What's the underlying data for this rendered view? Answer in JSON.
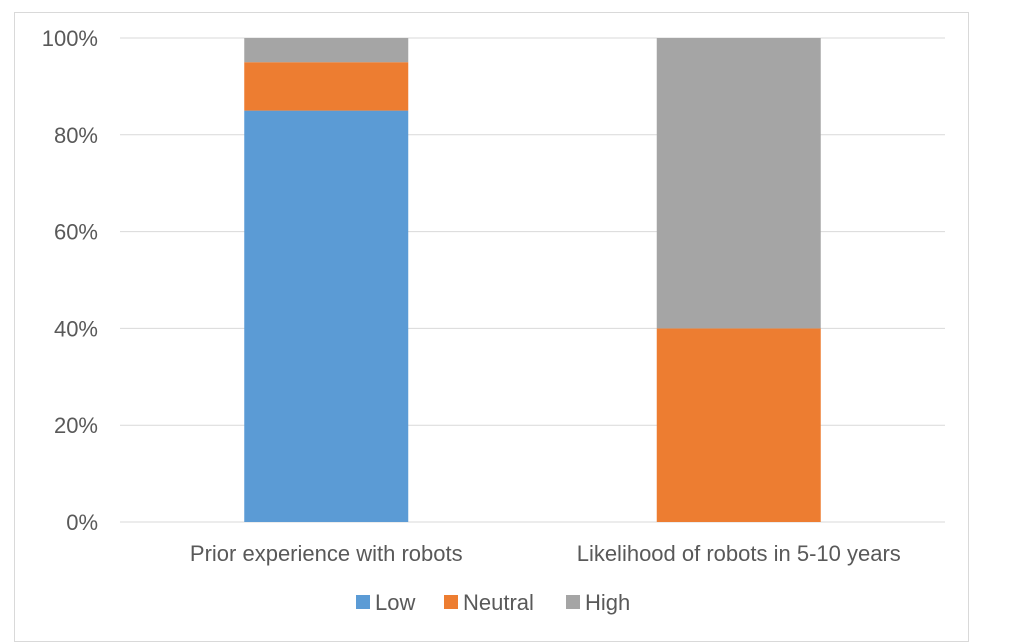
{
  "chart_data": {
    "type": "bar",
    "stacked": true,
    "categories": [
      "Prior experience with robots",
      "Likelihood of robots in 5-10 years"
    ],
    "series": [
      {
        "name": "Low",
        "color": "#5b9bd5",
        "values": [
          85,
          0
        ]
      },
      {
        "name": "Neutral",
        "color": "#ed7d31",
        "values": [
          10,
          40
        ]
      },
      {
        "name": "High",
        "color": "#a5a5a5",
        "values": [
          5,
          60
        ]
      }
    ],
    "y_ticks": [
      "0%",
      "20%",
      "40%",
      "60%",
      "80%",
      "100%"
    ],
    "ylim": [
      0,
      100
    ],
    "grid": true,
    "legend_position": "bottom"
  }
}
